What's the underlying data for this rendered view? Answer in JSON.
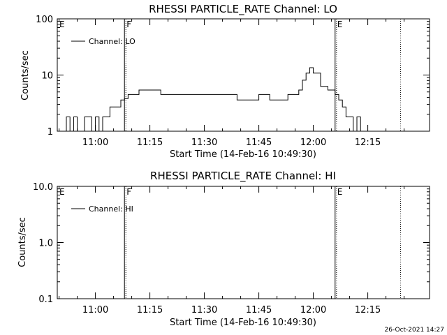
{
  "chart_data": [
    {
      "type": "line",
      "title": "RHESSI PARTICLE_RATE Channel: LO",
      "xlabel": "Start Time (14-Feb-16 10:49:30)",
      "ylabel": "Counts/sec",
      "yscale": "log",
      "ylim": [
        1,
        100
      ],
      "xlim": [
        "10:49:30",
        "12:32:00"
      ],
      "ytick_labels": [
        "1",
        "10",
        "100"
      ],
      "xtick_labels": [
        "11:00",
        "11:15",
        "11:30",
        "11:45",
        "12:00",
        "12:15"
      ],
      "legend": {
        "position": "top-left",
        "entries": [
          "Channel: LO"
        ]
      },
      "markers": [
        {
          "time": "10:49:30",
          "label": "E",
          "style": "solid"
        },
        {
          "time": "11:08:00",
          "label": "F",
          "style": "solid"
        },
        {
          "time": "12:06:00",
          "label": "E",
          "style": "solid"
        },
        {
          "time": "12:24:00",
          "label": "",
          "style": "dotted"
        }
      ],
      "series": [
        {
          "name": "Channel: LO",
          "x": [
            "10:51:00",
            "10:52:00",
            "10:53:00",
            "10:54:00",
            "10:55:00",
            "10:56:00",
            "10:57:00",
            "10:58:00",
            "10:59:00",
            "11:00:00",
            "11:01:00",
            "11:02:00",
            "11:03:00",
            "11:04:00",
            "11:05:00",
            "11:06:00",
            "11:07:00",
            "11:08:00",
            "11:09:00",
            "11:10:00",
            "11:12:00",
            "11:14:00",
            "11:16:00",
            "11:18:00",
            "11:20:00",
            "11:22:00",
            "11:24:00",
            "11:26:00",
            "11:28:00",
            "11:30:00",
            "11:33:00",
            "11:36:00",
            "11:39:00",
            "11:42:00",
            "11:45:00",
            "11:48:00",
            "11:50:00",
            "11:52:00",
            "11:53:00",
            "11:54:00",
            "11:55:00",
            "11:56:00",
            "11:57:00",
            "11:58:00",
            "11:59:00",
            "12:00:00",
            "12:02:00",
            "12:04:00",
            "12:06:00",
            "12:07:00",
            "12:08:00",
            "12:09:00",
            "12:10:00",
            "12:11:00",
            "12:12:00",
            "12:13:00"
          ],
          "values": [
            1,
            1.8,
            1,
            1.8,
            1,
            1,
            1.8,
            1.8,
            1,
            1.8,
            1,
            1.8,
            1.8,
            2.7,
            2.7,
            2.7,
            3.6,
            3.8,
            4.5,
            4.5,
            5.4,
            5.4,
            5.4,
            4.5,
            4.5,
            4.5,
            4.5,
            4.5,
            4.5,
            4.5,
            4.5,
            4.5,
            3.6,
            3.6,
            4.5,
            3.6,
            3.6,
            3.6,
            4.5,
            4.5,
            4.5,
            5.4,
            8.1,
            10.8,
            13.5,
            10.8,
            6.3,
            5.4,
            4.5,
            3.6,
            2.7,
            1.8,
            1.8,
            1,
            1.8,
            1
          ]
        }
      ]
    },
    {
      "type": "line",
      "title": "RHESSI PARTICLE_RATE Channel: HI",
      "xlabel": "Start Time (14-Feb-16 10:49:30)",
      "ylabel": "Counts/sec",
      "yscale": "log",
      "ylim": [
        0.1,
        10
      ],
      "xlim": [
        "10:49:30",
        "12:32:00"
      ],
      "ytick_labels": [
        "0.1",
        "1.0",
        "10.0"
      ],
      "xtick_labels": [
        "11:00",
        "11:15",
        "11:30",
        "11:45",
        "12:00",
        "12:15"
      ],
      "legend": {
        "position": "top-left",
        "entries": [
          "Channel: HI"
        ]
      },
      "markers": [
        {
          "time": "10:49:30",
          "label": "E",
          "style": "solid"
        },
        {
          "time": "11:08:00",
          "label": "F",
          "style": "solid"
        },
        {
          "time": "12:06:00",
          "label": "E",
          "style": "solid"
        },
        {
          "time": "12:24:00",
          "label": "",
          "style": "dotted"
        }
      ],
      "series": [
        {
          "name": "Channel: HI",
          "x": [],
          "values": []
        }
      ]
    }
  ],
  "footer": {
    "timestamp": "26-Oct-2021 14:27"
  }
}
